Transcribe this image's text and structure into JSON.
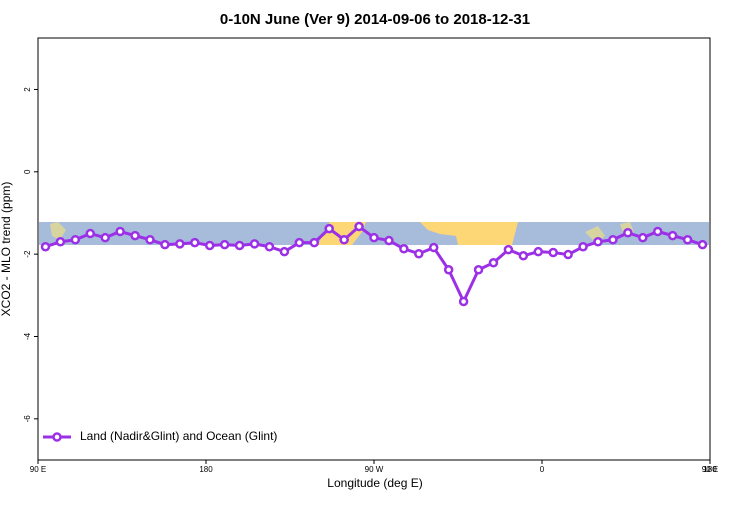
{
  "chart_data": {
    "type": "line",
    "title": "0-10N June (Ver 9)   2014-09-06 to 2018-12-31",
    "x_label": "Longitude (deg E)",
    "y_label": "XCO2 - MLO trend (ppm)",
    "x": [
      94,
      102,
      110,
      118,
      126,
      134,
      142,
      150,
      158,
      166,
      174,
      182,
      190,
      198,
      206,
      214,
      222,
      230,
      238,
      246,
      254,
      262,
      270,
      278,
      286,
      294,
      302,
      310,
      318,
      326,
      334,
      342,
      350,
      358,
      366,
      374,
      382,
      390,
      398,
      406,
      414,
      422,
      430,
      438,
      446
    ],
    "series": [
      {
        "name": "Land (Nadir&Glint) and Ocean (Glint)",
        "color": "#9b30e6",
        "values": [
          -1.82,
          -1.7,
          -1.65,
          -1.5,
          -1.6,
          -1.45,
          -1.55,
          -1.65,
          -1.77,
          -1.75,
          -1.72,
          -1.79,
          -1.77,
          -1.79,
          -1.75,
          -1.82,
          -1.94,
          -1.72,
          -1.72,
          -1.38,
          -1.65,
          -1.33,
          -1.6,
          -1.67,
          -1.87,
          -1.99,
          -1.84,
          -2.38,
          -3.15,
          -2.38,
          -2.21,
          -1.89,
          -2.04,
          -1.94,
          -1.96,
          -2.01,
          -1.82,
          -1.7,
          -1.65,
          -1.48,
          -1.6,
          -1.45,
          -1.55,
          -1.65,
          -1.77
        ]
      }
    ],
    "xlim": [
      90,
      450
    ],
    "xticks": [
      {
        "value": 90,
        "label": "90 E"
      },
      180,
      {
        "value": 270,
        "label": "90 W"
      },
      {
        "value": 360,
        "label": "0"
      },
      {
        "value": 450,
        "label": "90 E"
      },
      {
        "value": 540,
        "label": "180"
      }
    ],
    "ylim": [
      -7,
      3.25
    ],
    "yticks": [
      2,
      0,
      -2,
      -4,
      -6
    ],
    "legend": "bottom-left"
  }
}
